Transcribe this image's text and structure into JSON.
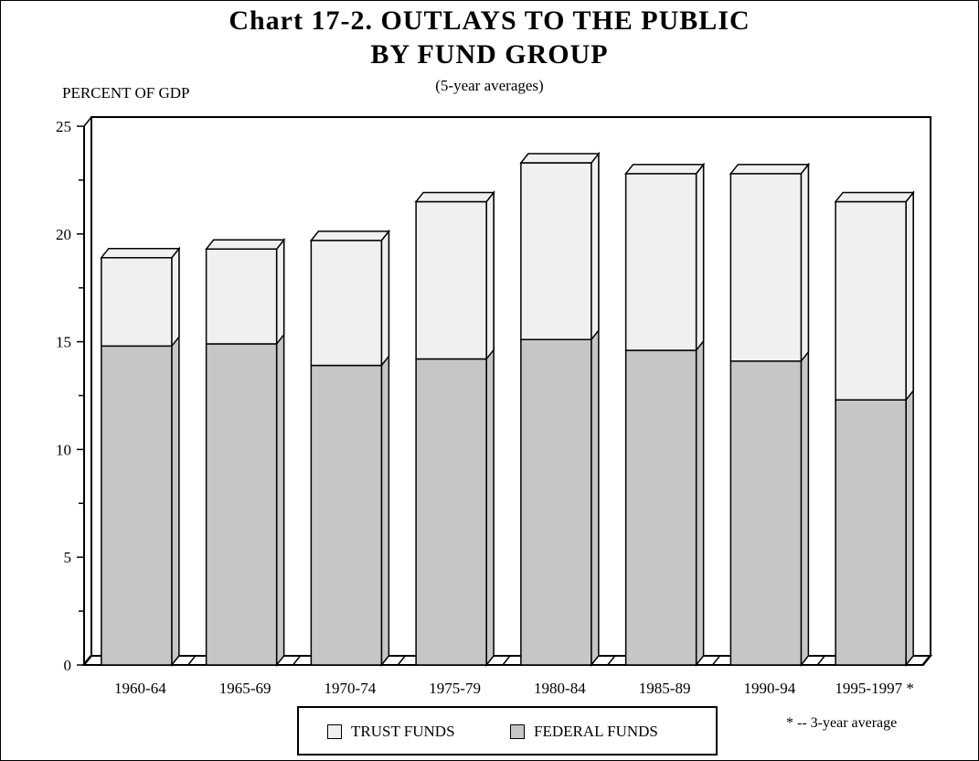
{
  "title_line1": "Chart 17-2.  OUTLAYS  TO  THE  PUBLIC",
  "title_line2": "BY  FUND  GROUP",
  "subtitle": "(5-year averages)",
  "ylabel": "PERCENT OF GDP",
  "footnote": "* -- 3-year average",
  "colors": {
    "trust": "#f0f0f2",
    "federal": "#c6c6c8",
    "outline": "#000000"
  },
  "chart_data": {
    "type": "bar",
    "stacked": true,
    "title": "Chart 17-2.  OUTLAYS  TO  THE  PUBLIC  BY  FUND  GROUP",
    "subtitle": "(5-year averages)",
    "xlabel": "",
    "ylabel": "PERCENT OF GDP",
    "ylim": [
      0,
      25
    ],
    "yticks": [
      "0",
      "5",
      "10",
      "15",
      "20",
      "25"
    ],
    "categories": [
      "1960-64",
      "1965-69",
      "1970-74",
      "1975-79",
      "1980-84",
      "1985-89",
      "1990-94",
      "1995-1997 *"
    ],
    "series": [
      {
        "name": "FEDERAL FUNDS",
        "values": [
          14.8,
          14.9,
          13.9,
          14.2,
          15.1,
          14.6,
          14.1,
          12.3
        ]
      },
      {
        "name": "TRUST FUNDS",
        "values": [
          4.1,
          4.4,
          5.8,
          7.3,
          8.2,
          8.2,
          8.7,
          9.2
        ]
      }
    ],
    "legend": {
      "position": "bottom",
      "entries": [
        "TRUST FUNDS",
        "FEDERAL FUNDS"
      ]
    },
    "grid": false
  }
}
